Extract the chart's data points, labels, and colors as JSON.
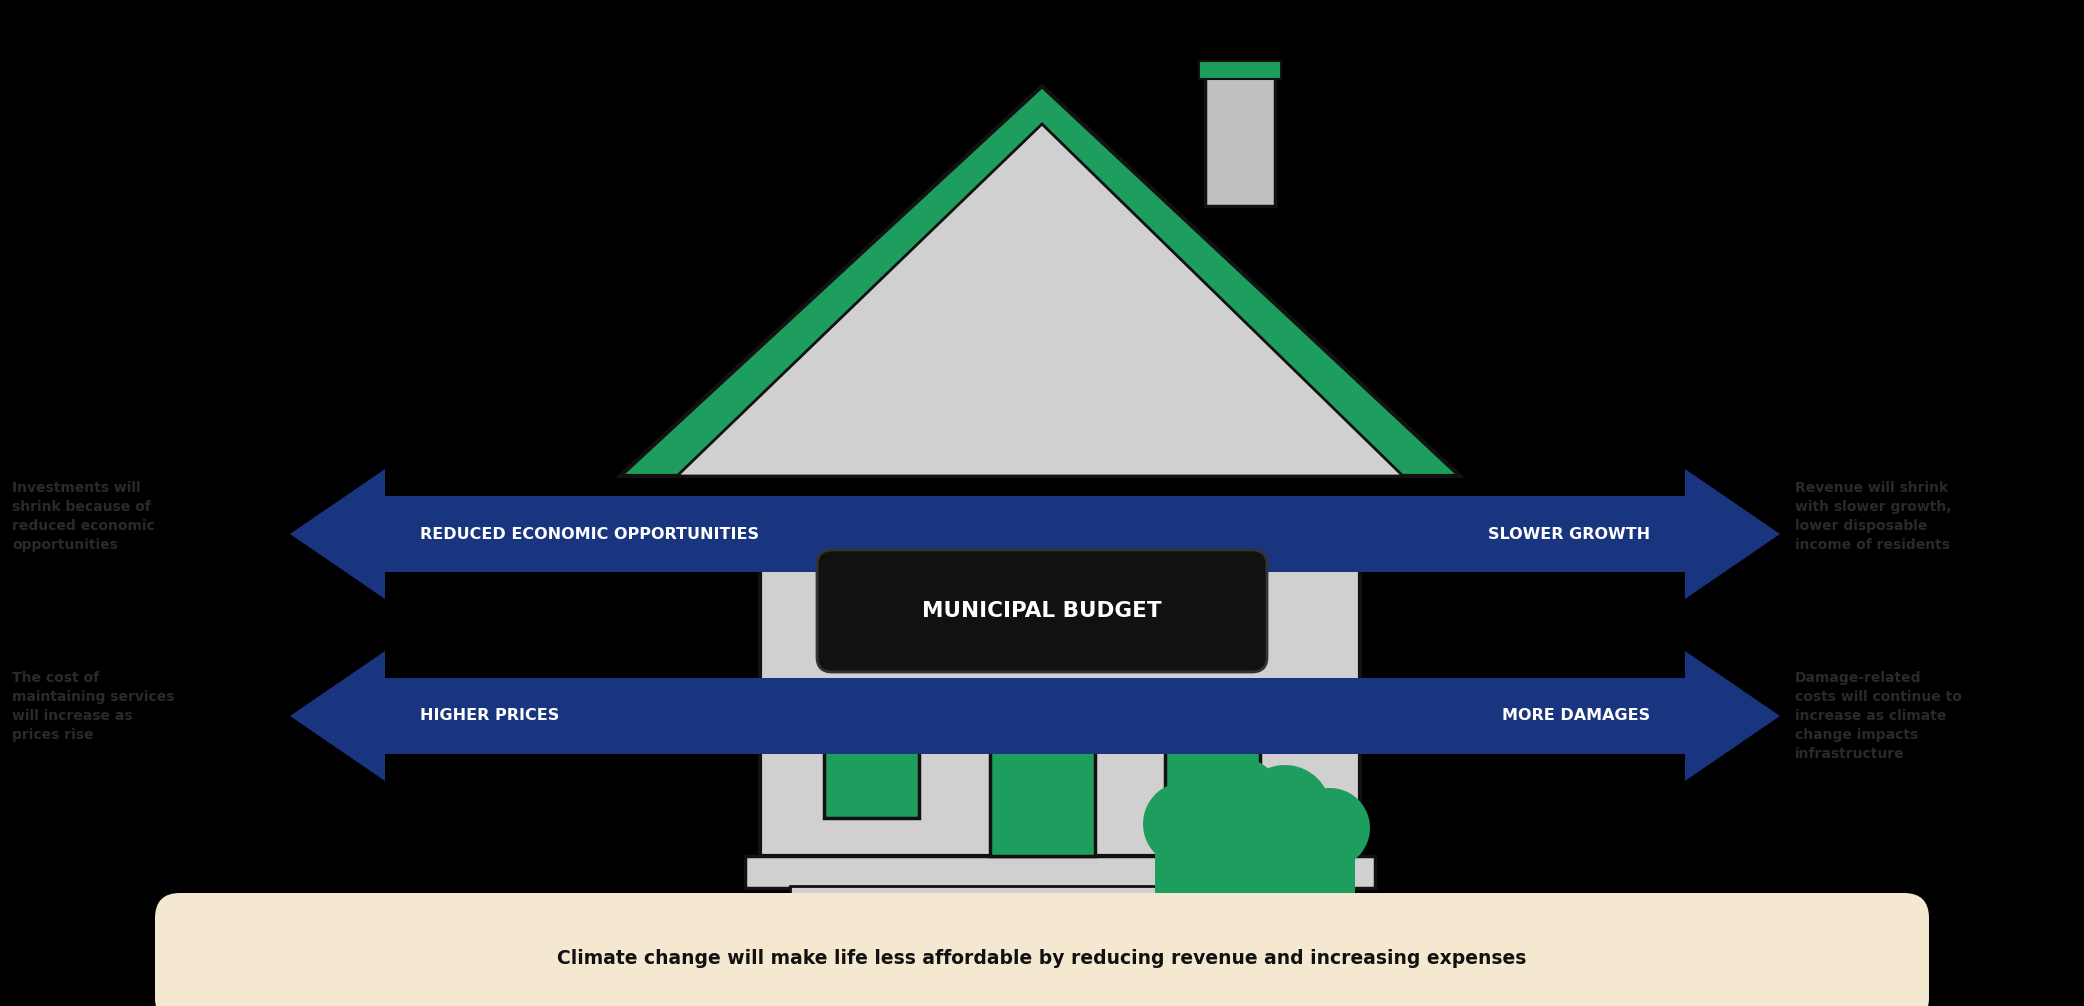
{
  "bg_color": "#000000",
  "house_body_color": "#d0d0d0",
  "house_outline_color": "#111111",
  "roof_green_color": "#1e9e5e",
  "chimney_color": "#c0c0c0",
  "arrow_color": "#1a3580",
  "sign_color": "#111111",
  "sign_text_color": "#ffffff",
  "door_color": "#1e9e5e",
  "window_color": "#1e9e5e",
  "bush_color": "#1e9e5e",
  "footer_bg": "#f5e8d0",
  "footer_text": "Climate change will make life less affordable by reducing revenue and increasing expenses",
  "arrow_labels": [
    "REDUCED ECONOMIC OPPORTUNITIES",
    "SLOWER GROWTH",
    "HIGHER PRICES",
    "MORE DAMAGES"
  ],
  "left_text_top": "Investments will\nshrink because of\nreduced economic\nopportunities",
  "left_text_bottom": "The cost of\nmaintaining services\nwill increase as\nprices rise",
  "right_text_top": "Revenue will shrink\nwith slower growth,\nlower disposable\nincome of residents",
  "right_text_bottom": "Damage-related\ncosts will continue to\nincrease as climate\nchange impacts\ninfrastructure"
}
